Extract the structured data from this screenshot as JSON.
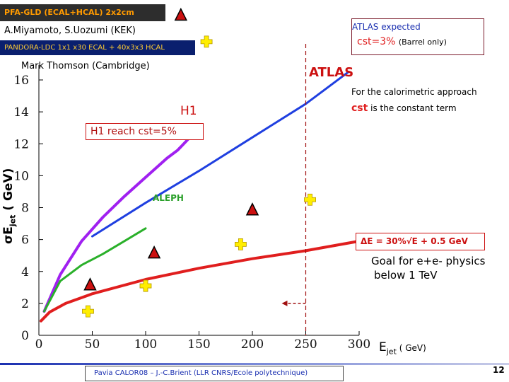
{
  "header": {
    "pfa_legend": "PFA-GLD (ECAL+HCAL) 2x2cm",
    "authors": "A.Miyamoto, S.Uozumi (KEK)",
    "pandora_legend": "PANDORA-LDC 1x1 x30 ECAL + 40x3x3 HCAL",
    "thomson": "Mark Thomson (Cambridge)"
  },
  "annotations": {
    "atlas_expected": "ATLAS expected",
    "atlas_cst": "cst=3%",
    "atlas_cst_note": "(Barrel only)",
    "atlas": "ATLAS",
    "calo_line1": "For the calorimetric approach",
    "calo_cst": "cst",
    "calo_line2_rest": " is the constant term",
    "h1": "H1",
    "h1_reach": "H1 reach cst=5%",
    "aleph": "ALEPH",
    "de_formula": "ΔE = 30%√E  + 0.5 GeV",
    "goal_line1": "Goal for e+e- physics",
    "goal_line2": "below 1 TeV"
  },
  "axes": {
    "y_sigma": "σE",
    "y_sub": "jet",
    "y_unit": " ( GeV)",
    "x_main": "E",
    "x_sub": "jet",
    "x_unit": " ( GeV)"
  },
  "footer": {
    "text": "Pavia CALOR08 – J.-C.Brient  (LLR CNRS/Ecole polytechnique)",
    "page": "12"
  },
  "colors": {
    "atlas_curve": "#1f3fe0",
    "h1_curve": "#a020f0",
    "aleph_curve": "#2ab02a",
    "ilc_curve": "#e01e1e",
    "marker_triangle": "#cc1010",
    "marker_cross": "#ffee00"
  },
  "chart_data": {
    "type": "line",
    "xlabel": "Ejet ( GeV)",
    "ylabel": "σEjet ( GeV)",
    "xlim": [
      0,
      300
    ],
    "ylim": [
      0,
      16
    ],
    "x_ticks": [
      0,
      50,
      100,
      150,
      200,
      250,
      300
    ],
    "y_ticks": [
      0,
      2,
      4,
      6,
      8,
      10,
      12,
      14,
      16
    ],
    "grid": false,
    "series": [
      {
        "name": "ATLAS",
        "x": [
          50,
          100,
          150,
          200,
          250,
          290
        ],
        "y": [
          6.2,
          8.3,
          10.3,
          12.4,
          14.5,
          16.5
        ]
      },
      {
        "name": "H1",
        "x": [
          5,
          20,
          40,
          60,
          80,
          100,
          120,
          130,
          140
        ],
        "y": [
          1.5,
          3.8,
          5.9,
          7.4,
          8.7,
          9.9,
          11.1,
          11.6,
          12.3
        ]
      },
      {
        "name": "ALEPH",
        "x": [
          5,
          20,
          40,
          60,
          80,
          100
        ],
        "y": [
          1.5,
          3.4,
          4.4,
          5.1,
          5.9,
          6.7
        ]
      },
      {
        "name": "",
        "x": [
          2,
          10,
          25,
          50,
          100,
          150,
          200,
          250,
          300
        ],
        "y": [
          0.9,
          1.45,
          2.0,
          2.6,
          3.5,
          4.2,
          4.8,
          5.3,
          5.9
        ]
      }
    ],
    "markers": {
      "triangles": [
        [
          48,
          3.2
        ],
        [
          108,
          5.2
        ],
        [
          133,
          20.1
        ],
        [
          200,
          7.9
        ]
      ],
      "crosses": [
        [
          46,
          1.5
        ],
        [
          100,
          3.1
        ],
        [
          157,
          18.4
        ],
        [
          189,
          5.7
        ],
        [
          254,
          8.5
        ]
      ]
    },
    "reference": {
      "x": 250,
      "arrow_y": 2.0
    }
  }
}
